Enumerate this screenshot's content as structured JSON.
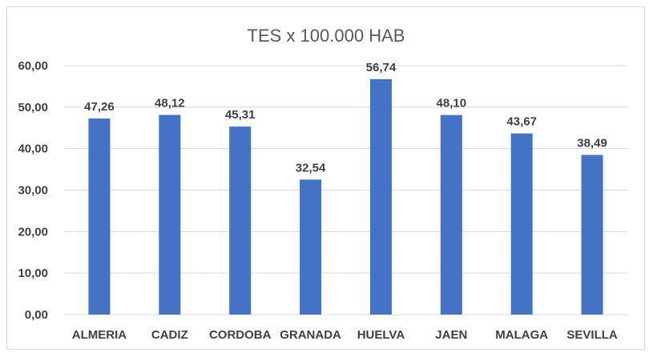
{
  "chart_data": {
    "type": "bar",
    "title": "TES x 100.000 HAB",
    "categories": [
      "ALMERIA",
      "CADIZ",
      "CORDOBA",
      "GRANADA",
      "HUELVA",
      "JAEN",
      "MALAGA",
      "SEVILLA"
    ],
    "values": [
      47.26,
      48.12,
      45.31,
      32.54,
      56.74,
      48.1,
      43.67,
      38.49
    ],
    "value_labels": [
      "47,26",
      "48,12",
      "45,31",
      "32,54",
      "56,74",
      "48,10",
      "43,67",
      "38,49"
    ],
    "ylim": [
      0,
      60
    ],
    "yticks": [
      0,
      10,
      20,
      30,
      40,
      50,
      60
    ],
    "ytick_labels": [
      "0,00",
      "10,00",
      "20,00",
      "30,00",
      "40,00",
      "50,00",
      "60,00"
    ],
    "xlabel": "",
    "ylabel": "",
    "grid": true,
    "legend": false,
    "bar_color": "#4472c4"
  }
}
